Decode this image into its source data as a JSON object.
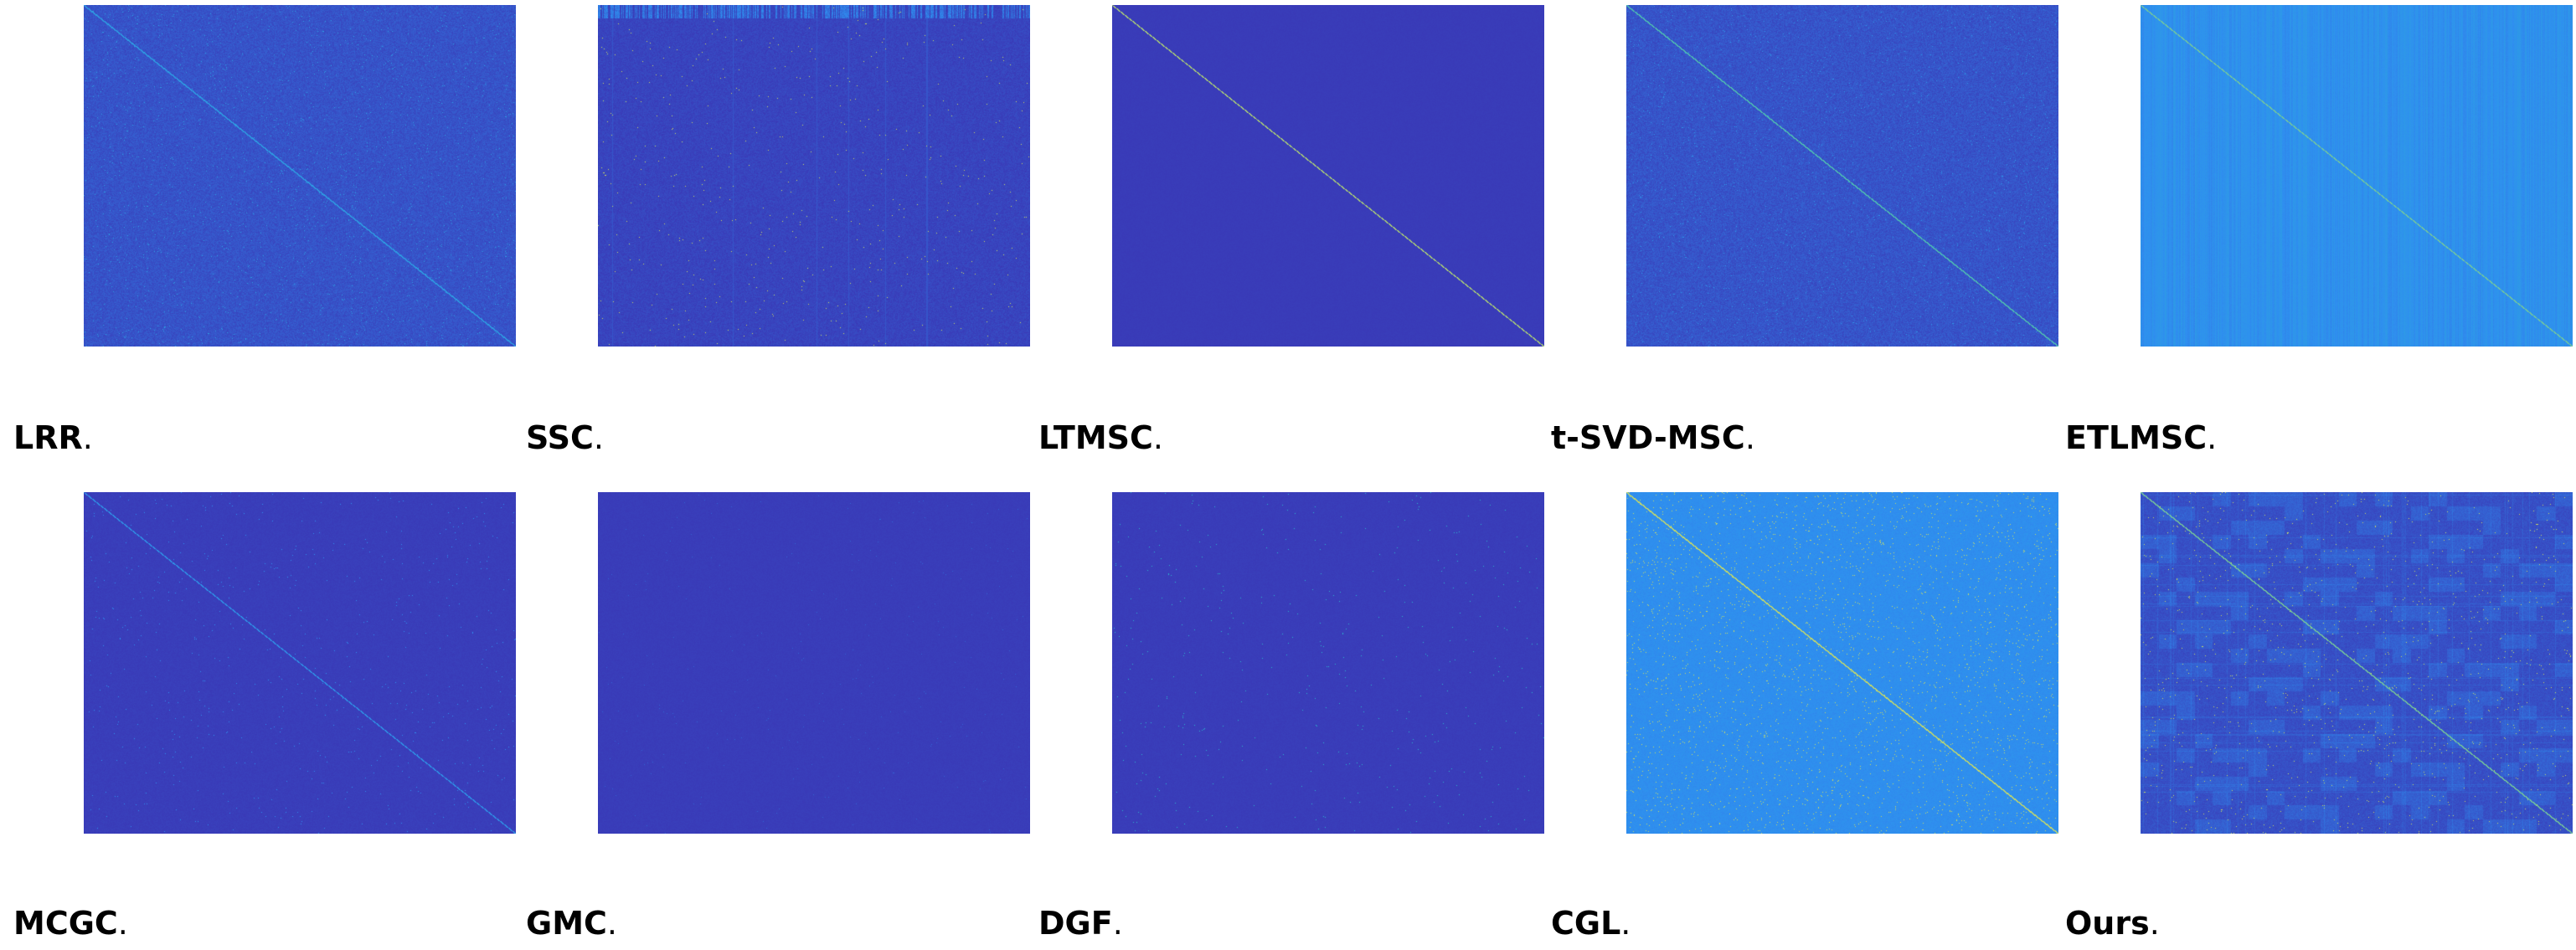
{
  "colors": {
    "background": "#ffffff",
    "low": "#3b2fb0",
    "mid": "#2f8ff0",
    "high": "#f2e24a"
  },
  "panels": [
    {
      "method": "LRR",
      "suffix": ".",
      "colormap": "parula",
      "background_level": "low",
      "pattern": "noisy-with-faint-diagonal"
    },
    {
      "method": "SSC",
      "suffix": ".",
      "colormap": "parula",
      "background_level": "low",
      "pattern": "sparse-dots-with-streaks"
    },
    {
      "method": "LTMSC",
      "suffix": ".",
      "colormap": "parula",
      "background_level": "low",
      "pattern": "clean-bright-diagonal"
    },
    {
      "method": "t-SVD-MSC",
      "suffix": ".",
      "colormap": "parula",
      "background_level": "low",
      "pattern": "noisy-with-diagonal"
    },
    {
      "method": "ETLMSC",
      "suffix": ".",
      "colormap": "parula",
      "background_level": "mid",
      "pattern": "vertical-stripes-with-diagonal"
    },
    {
      "method": "MCGC",
      "suffix": ".",
      "colormap": "parula",
      "background_level": "low",
      "pattern": "faint-diagonal"
    },
    {
      "method": "GMC",
      "suffix": ".",
      "colormap": "parula",
      "background_level": "low",
      "pattern": "nearly-uniform"
    },
    {
      "method": "DGF",
      "suffix": ".",
      "colormap": "parula",
      "background_level": "low",
      "pattern": "nearly-uniform-sparse-dots"
    },
    {
      "method": "CGL",
      "suffix": ".",
      "colormap": "parula",
      "background_level": "mid",
      "pattern": "speckled-with-bright-diagonal"
    },
    {
      "method": "Ours",
      "suffix": ".",
      "colormap": "parula",
      "background_level": "low",
      "pattern": "block-structure-with-diagonal"
    }
  ]
}
